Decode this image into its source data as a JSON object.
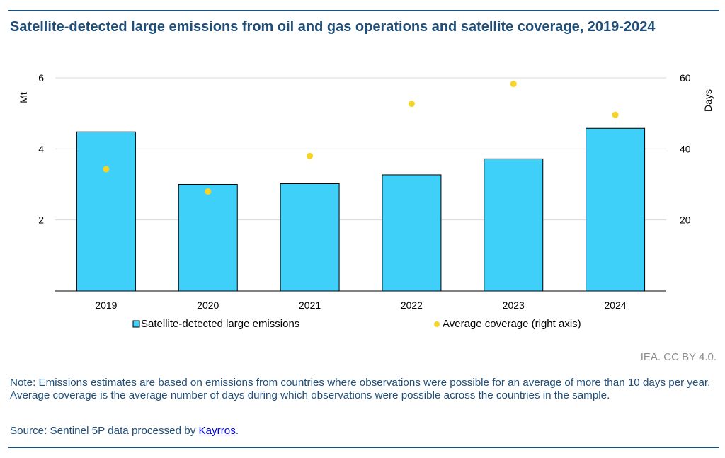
{
  "header": {
    "title": "Satellite-detected large emissions from oil and gas operations and satellite coverage, 2019-2024"
  },
  "chart_data": {
    "type": "bar",
    "categories": [
      "2019",
      "2020",
      "2021",
      "2022",
      "2023",
      "2024"
    ],
    "series": [
      {
        "name": "Satellite-detected large emissions",
        "type": "bar",
        "axis": "left",
        "color": "#3fd0fa",
        "values": [
          4.48,
          3.0,
          3.02,
          3.27,
          3.72,
          4.58
        ]
      },
      {
        "name": "Average coverage (right axis)",
        "type": "scatter",
        "axis": "right",
        "color": "#f5d327",
        "values": [
          34.3,
          28.0,
          38.0,
          52.7,
          58.3,
          49.6
        ]
      }
    ],
    "ylabel": "Mt",
    "y2label": "Days",
    "ylim": [
      0,
      6
    ],
    "y2lim": [
      0,
      60
    ],
    "yticks": [
      2,
      4,
      6
    ],
    "y2ticks": [
      20,
      40,
      60
    ],
    "grid": true,
    "legend": "bottom"
  },
  "footer": {
    "credit": "IEA. CC BY 4.0.",
    "note": "Note:  Emissions estimates are based on emissions from countries where observations were possible for an average of more than 10 days per year. Average coverage is the average number of days during which observations were possible across the countries in the sample.",
    "source_prefix": "Source: Sentinel 5P data processed by ",
    "source_link": "Kayrros",
    "source_suffix": "."
  }
}
